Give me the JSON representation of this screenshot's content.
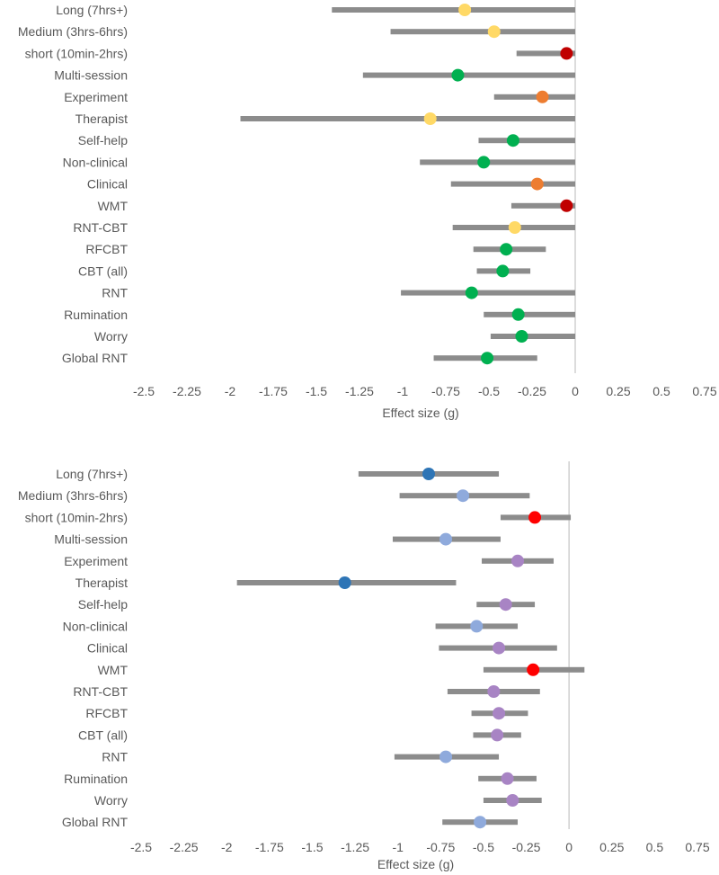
{
  "chart_data": [
    {
      "type": "scatter",
      "subtype": "forest-plot",
      "title": "",
      "xlabel": "Effect size (g)",
      "ylabel": "",
      "xlim": [
        -2.5,
        0.75
      ],
      "xticks": [
        "-2.5",
        "-2.25",
        "-2",
        "-1.75",
        "-1.5",
        "-1.25",
        "-1",
        "-0.75",
        "-0.5",
        "-0.25",
        "0",
        "0.25",
        "0.5",
        "0.75"
      ],
      "grid": false,
      "legend": "none",
      "bar_color": "#8c8c8c",
      "categories": [
        "Long (7hrs+)",
        "Medium (3hrs-6hrs)",
        "short (10min-2hrs)",
        "Multi-session",
        "Experiment",
        "Therapist",
        "Self-help",
        "Non-clinical",
        "Clinical",
        "WMT",
        "RNT-CBT",
        "RFCBT",
        "CBT (all)",
        "RNT",
        "Rumination",
        "Worry",
        "Global RNT"
      ],
      "points": [
        {
          "category": "Long (7hrs+)",
          "estimate": -0.64,
          "lower": -1.41,
          "upper": 0.0,
          "color": "#ffd966"
        },
        {
          "category": "Medium (3hrs-6hrs)",
          "estimate": -0.47,
          "lower": -1.07,
          "upper": 0.0,
          "color": "#ffd966"
        },
        {
          "category": "short (10min-2hrs)",
          "estimate": -0.05,
          "lower": -0.34,
          "upper": 0.0,
          "color": "#c00000"
        },
        {
          "category": "Multi-session",
          "estimate": -0.68,
          "lower": -1.23,
          "upper": 0.0,
          "color": "#00b050"
        },
        {
          "category": "Experiment",
          "estimate": -0.19,
          "lower": -0.47,
          "upper": 0.0,
          "color": "#ed7d31"
        },
        {
          "category": "Therapist",
          "estimate": -0.84,
          "lower": -1.94,
          "upper": 0.0,
          "color": "#ffd966"
        },
        {
          "category": "Self-help",
          "estimate": -0.36,
          "lower": -0.56,
          "upper": 0.0,
          "color": "#00b050"
        },
        {
          "category": "Non-clinical",
          "estimate": -0.53,
          "lower": -0.9,
          "upper": 0.0,
          "color": "#00b050"
        },
        {
          "category": "Clinical",
          "estimate": -0.22,
          "lower": -0.72,
          "upper": 0.0,
          "color": "#ed7d31"
        },
        {
          "category": "WMT",
          "estimate": -0.05,
          "lower": -0.37,
          "upper": 0.0,
          "color": "#c00000"
        },
        {
          "category": "RNT-CBT",
          "estimate": -0.35,
          "lower": -0.71,
          "upper": 0.0,
          "color": "#ffd966"
        },
        {
          "category": "RFCBT",
          "estimate": -0.4,
          "lower": -0.59,
          "upper": -0.17,
          "color": "#00b050"
        },
        {
          "category": "CBT (all)",
          "estimate": -0.42,
          "lower": -0.57,
          "upper": -0.26,
          "color": "#00b050"
        },
        {
          "category": "RNT",
          "estimate": -0.6,
          "lower": -1.01,
          "upper": 0.0,
          "color": "#00b050"
        },
        {
          "category": "Rumination",
          "estimate": -0.33,
          "lower": -0.53,
          "upper": 0.0,
          "color": "#00b050"
        },
        {
          "category": "Worry",
          "estimate": -0.31,
          "lower": -0.49,
          "upper": 0.0,
          "color": "#00b050"
        },
        {
          "category": "Global RNT",
          "estimate": -0.51,
          "lower": -0.82,
          "upper": -0.22,
          "color": "#00b050"
        }
      ]
    },
    {
      "type": "scatter",
      "subtype": "forest-plot",
      "title": "",
      "xlabel": "Effect size (g)",
      "ylabel": "",
      "xlim": [
        -2.5,
        0.75
      ],
      "xticks": [
        "-2.5",
        "-2.25",
        "-2",
        "-1.75",
        "-1.5",
        "-1.25",
        "-1",
        "-0.75",
        "-0.5",
        "-0.25",
        "0",
        "0.25",
        "0.5",
        "0.75"
      ],
      "grid": false,
      "legend": "none",
      "bar_color": "#8c8c8c",
      "categories": [
        "Long (7hrs+)",
        "Medium (3hrs-6hrs)",
        "short (10min-2hrs)",
        "Multi-session",
        "Experiment",
        "Therapist",
        "Self-help",
        "Non-clinical",
        "Clinical",
        "WMT",
        "RNT-CBT",
        "RFCBT",
        "CBT (all)",
        "RNT",
        "Rumination",
        "Worry",
        "Global RNT"
      ],
      "points": [
        {
          "category": "Long (7hrs+)",
          "estimate": -0.82,
          "lower": -1.23,
          "upper": -0.41,
          "color": "#2e75b6"
        },
        {
          "category": "Medium (3hrs-6hrs)",
          "estimate": -0.62,
          "lower": -0.99,
          "upper": -0.23,
          "color": "#8faadc"
        },
        {
          "category": "short (10min-2hrs)",
          "estimate": -0.2,
          "lower": -0.4,
          "upper": 0.01,
          "color": "#ff0000"
        },
        {
          "category": "Multi-session",
          "estimate": -0.72,
          "lower": -1.03,
          "upper": -0.4,
          "color": "#8faadc"
        },
        {
          "category": "Experiment",
          "estimate": -0.3,
          "lower": -0.51,
          "upper": -0.09,
          "color": "#a884c4"
        },
        {
          "category": "Therapist",
          "estimate": -1.31,
          "lower": -1.94,
          "upper": -0.66,
          "color": "#2e75b6"
        },
        {
          "category": "Self-help",
          "estimate": -0.37,
          "lower": -0.54,
          "upper": -0.2,
          "color": "#a884c4"
        },
        {
          "category": "Non-clinical",
          "estimate": -0.54,
          "lower": -0.78,
          "upper": -0.3,
          "color": "#8faadc"
        },
        {
          "category": "Clinical",
          "estimate": -0.41,
          "lower": -0.76,
          "upper": -0.07,
          "color": "#a884c4"
        },
        {
          "category": "WMT",
          "estimate": -0.21,
          "lower": -0.5,
          "upper": 0.09,
          "color": "#ff0000"
        },
        {
          "category": "RNT-CBT",
          "estimate": -0.44,
          "lower": -0.71,
          "upper": -0.17,
          "color": "#a884c4"
        },
        {
          "category": "RFCBT",
          "estimate": -0.41,
          "lower": -0.57,
          "upper": -0.24,
          "color": "#a884c4"
        },
        {
          "category": "CBT (all)",
          "estimate": -0.42,
          "lower": -0.56,
          "upper": -0.28,
          "color": "#a884c4"
        },
        {
          "category": "RNT",
          "estimate": -0.72,
          "lower": -1.02,
          "upper": -0.41,
          "color": "#8faadc"
        },
        {
          "category": "Rumination",
          "estimate": -0.36,
          "lower": -0.53,
          "upper": -0.19,
          "color": "#a884c4"
        },
        {
          "category": "Worry",
          "estimate": -0.33,
          "lower": -0.5,
          "upper": -0.16,
          "color": "#a884c4"
        },
        {
          "category": "Global RNT",
          "estimate": -0.52,
          "lower": -0.74,
          "upper": -0.3,
          "color": "#8faadc"
        }
      ]
    }
  ]
}
